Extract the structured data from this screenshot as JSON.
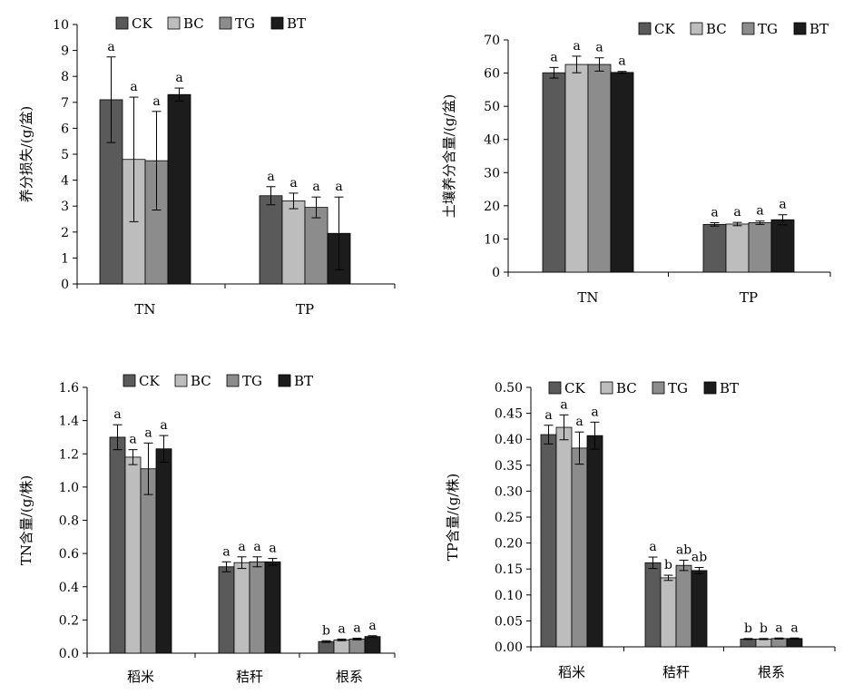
{
  "chart_data": [
    {
      "id": "chart-1",
      "type": "bar",
      "ylabel": "养分损失/(g/盆)",
      "ylim": [
        0,
        10
      ],
      "ystep": 1,
      "ydecimals": 0,
      "categories": [
        "TN",
        "TP"
      ],
      "legend": [
        "CK",
        "BC",
        "TG",
        "BT"
      ],
      "series": [
        {
          "name": "CK",
          "values": [
            7.1,
            3.4
          ],
          "errors": [
            1.65,
            0.35
          ],
          "sig": [
            "a",
            "a"
          ]
        },
        {
          "name": "BC",
          "values": [
            4.8,
            3.2
          ],
          "errors": [
            2.4,
            0.3
          ],
          "sig": [
            "a",
            "a"
          ]
        },
        {
          "name": "TG",
          "values": [
            4.75,
            2.95
          ],
          "errors": [
            1.9,
            0.4
          ],
          "sig": [
            "a",
            "a"
          ]
        },
        {
          "name": "BT",
          "values": [
            7.3,
            1.95
          ],
          "errors": [
            0.25,
            1.4
          ],
          "sig": [
            "a",
            "a"
          ]
        }
      ]
    },
    {
      "id": "chart-2",
      "type": "bar",
      "ylabel": "土壤养分含量/(g/盆)",
      "ylim": [
        0,
        70
      ],
      "ystep": 10,
      "ydecimals": 0,
      "categories": [
        "TN",
        "TP"
      ],
      "legend": [
        "CK",
        "BC",
        "TG",
        "BT"
      ],
      "series": [
        {
          "name": "CK",
          "values": [
            60.1,
            14.4
          ],
          "errors": [
            1.6,
            0.5
          ],
          "sig": [
            "a",
            "a"
          ]
        },
        {
          "name": "BC",
          "values": [
            62.6,
            14.5
          ],
          "errors": [
            2.5,
            0.5
          ],
          "sig": [
            "a",
            "a"
          ]
        },
        {
          "name": "TG",
          "values": [
            62.6,
            14.9
          ],
          "errors": [
            2.0,
            0.5
          ],
          "sig": [
            "a",
            "a"
          ]
        },
        {
          "name": "BT",
          "values": [
            60.2,
            15.8
          ],
          "errors": [
            0.3,
            1.5
          ],
          "sig": [
            "a",
            "a"
          ]
        }
      ]
    },
    {
      "id": "chart-3",
      "type": "bar",
      "ylabel": "TN含量/(g/株)",
      "ylim": [
        0,
        1.6
      ],
      "ystep": 0.2,
      "ydecimals": 1,
      "categories": [
        "稻米",
        "秸秆",
        "根系"
      ],
      "legend": [
        "CK",
        "BC",
        "TG",
        "BT"
      ],
      "series": [
        {
          "name": "CK",
          "values": [
            1.3,
            0.52,
            0.07
          ],
          "errors": [
            0.075,
            0.03,
            0.005
          ],
          "sig": [
            "a",
            "a",
            "b"
          ]
        },
        {
          "name": "BC",
          "values": [
            1.18,
            0.545,
            0.08
          ],
          "errors": [
            0.045,
            0.035,
            0.005
          ],
          "sig": [
            "a",
            "a",
            "a"
          ]
        },
        {
          "name": "TG",
          "values": [
            1.11,
            0.55,
            0.085
          ],
          "errors": [
            0.155,
            0.03,
            0.005
          ],
          "sig": [
            "a",
            "a",
            "a"
          ]
        },
        {
          "name": "BT",
          "values": [
            1.23,
            0.55,
            0.1
          ],
          "errors": [
            0.08,
            0.02,
            0.005
          ],
          "sig": [
            "a",
            "a",
            "a"
          ]
        }
      ]
    },
    {
      "id": "chart-4",
      "type": "bar",
      "ylabel": "TP含量/(g/株)",
      "ylim": [
        0,
        0.5
      ],
      "ystep": 0.05,
      "ydecimals": 2,
      "categories": [
        "稻米",
        "秸秆",
        "根系"
      ],
      "legend": [
        "CK",
        "BC",
        "TG",
        "BT"
      ],
      "series": [
        {
          "name": "CK",
          "values": [
            0.409,
            0.162,
            0.015
          ],
          "errors": [
            0.018,
            0.011,
            0.001
          ],
          "sig": [
            "a",
            "a",
            "b"
          ]
        },
        {
          "name": "BC",
          "values": [
            0.423,
            0.133,
            0.015
          ],
          "errors": [
            0.024,
            0.005,
            0.001
          ],
          "sig": [
            "a",
            "b",
            "b"
          ]
        },
        {
          "name": "TG",
          "values": [
            0.383,
            0.157,
            0.016
          ],
          "errors": [
            0.031,
            0.01,
            0.001
          ],
          "sig": [
            "a",
            "ab",
            "a"
          ]
        },
        {
          "name": "BT",
          "values": [
            0.407,
            0.147,
            0.016
          ],
          "errors": [
            0.026,
            0.006,
            0.001
          ],
          "sig": [
            "a",
            "ab",
            "a"
          ]
        }
      ]
    }
  ]
}
